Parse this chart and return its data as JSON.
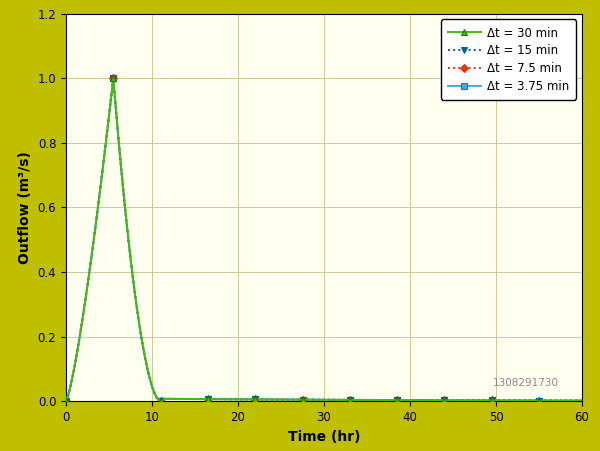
{
  "background_color": "#bfbf00",
  "plot_bg_color": "#fffff0",
  "grid_color": "#cccc99",
  "xlabel": "Time (hr)",
  "ylabel": "Outflow (m³/s)",
  "xlim": [
    0,
    60
  ],
  "ylim": [
    0,
    1.2
  ],
  "xticks": [
    0,
    10,
    20,
    30,
    40,
    50,
    60
  ],
  "yticks": [
    0,
    0.2,
    0.4,
    0.6,
    0.8,
    1.0,
    1.2
  ],
  "watermark": "1308291730",
  "series": [
    {
      "label": "Δt = 30 min",
      "color": "#44bb11",
      "linestyle": "-",
      "linewidth": 1.4,
      "marker": "^",
      "markersize": 5,
      "markeredgecolor": "#227700"
    },
    {
      "label": "Δt = 15 min",
      "color": "#006688",
      "linestyle": ":",
      "linewidth": 1.4,
      "marker": "v",
      "markersize": 5,
      "markeredgecolor": "#006688"
    },
    {
      "label": "Δt = 7.5 min",
      "color": "#ee3300",
      "linestyle": ":",
      "linewidth": 1.4,
      "marker": "D",
      "markersize": 4,
      "markeredgecolor": "#ee3300"
    },
    {
      "label": "Δt = 3.75 min",
      "color": "#44aadd",
      "linestyle": "-",
      "linewidth": 1.4,
      "marker": "s",
      "markersize": 4,
      "markeredgecolor": "#2277aa"
    }
  ],
  "legend_fontsize": 8.5,
  "axis_label_fontsize": 10,
  "tick_fontsize": 8.5
}
